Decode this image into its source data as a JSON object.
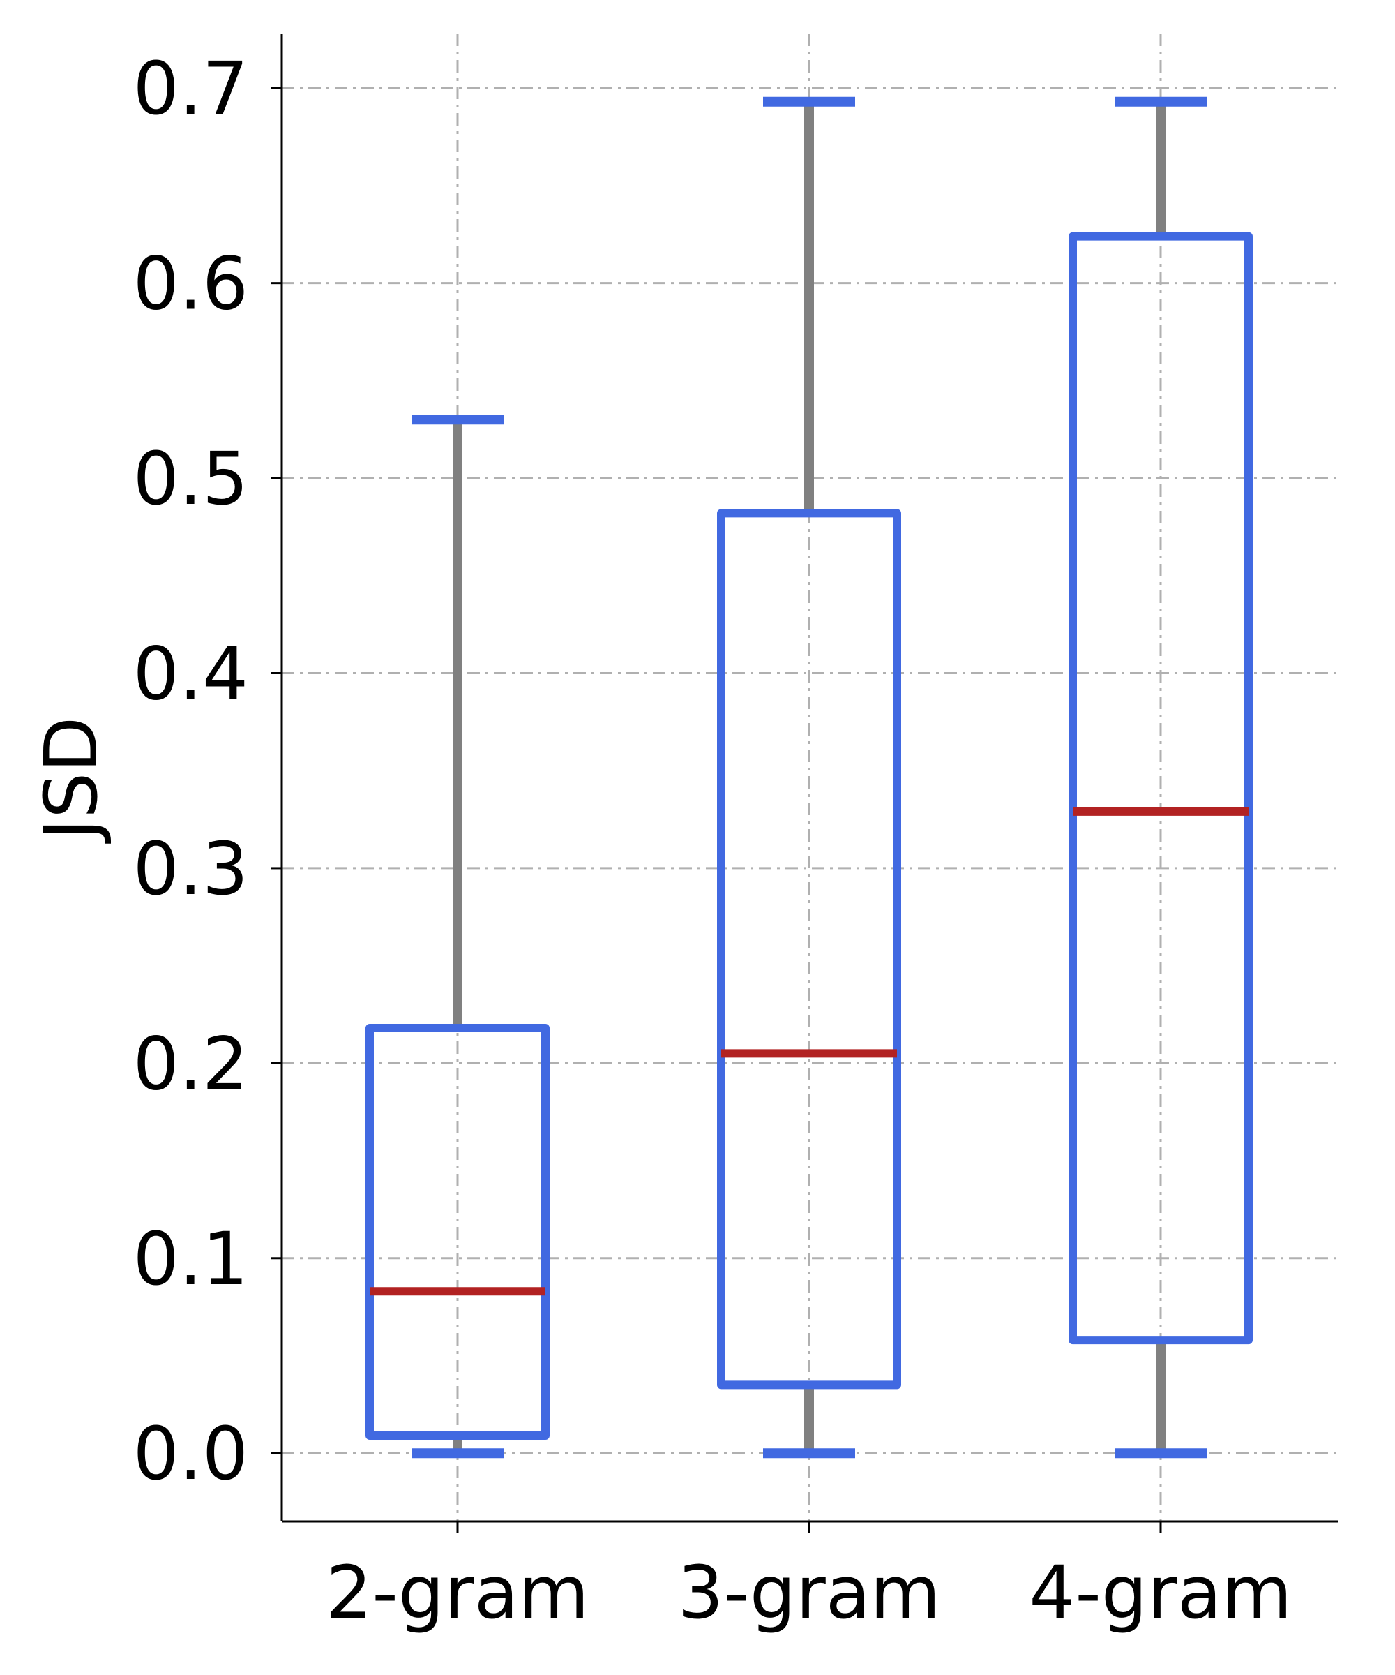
{
  "chart_data": {
    "type": "box",
    "ylabel": "JSD",
    "xlabel": "",
    "categories": [
      "2-gram",
      "3-gram",
      "4-gram"
    ],
    "ylim": [
      -0.035,
      0.728
    ],
    "yticks": [
      "0.0",
      "0.1",
      "0.2",
      "0.3",
      "0.4",
      "0.5",
      "0.6",
      "0.7"
    ],
    "grid": true,
    "boxes": [
      {
        "category": "2-gram",
        "whisker_low": 0.0,
        "q1": 0.009,
        "median": 0.083,
        "q3": 0.218,
        "whisker_high": 0.53
      },
      {
        "category": "3-gram",
        "whisker_low": 0.0,
        "q1": 0.035,
        "median": 0.205,
        "q3": 0.482,
        "whisker_high": 0.693
      },
      {
        "category": "4-gram",
        "whisker_low": 0.0,
        "q1": 0.058,
        "median": 0.329,
        "q3": 0.624,
        "whisker_high": 0.693
      }
    ],
    "colors": {
      "box": "#4169e1",
      "median": "#b22222",
      "whisker": "#808080",
      "cap": "#4169e1",
      "grid": "#b0b0b0",
      "axis": "#000000"
    }
  }
}
